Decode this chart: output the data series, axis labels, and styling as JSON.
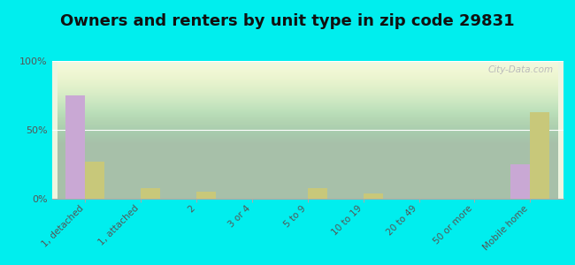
{
  "title": "Owners and renters by unit type in zip code 29831",
  "categories": [
    "1, detached",
    "1, attached",
    "2",
    "3 or 4",
    "5 to 9",
    "10 to 19",
    "20 to 49",
    "50 or more",
    "Mobile home"
  ],
  "owner_values": [
    75,
    0,
    0,
    0,
    0,
    0,
    0,
    0,
    25
  ],
  "renter_values": [
    27,
    8,
    5,
    0,
    8,
    4,
    0,
    0,
    63
  ],
  "owner_color": "#c9a8d4",
  "renter_color": "#c8c87a",
  "background_color": "#00eeee",
  "ylim": [
    0,
    100
  ],
  "yticks": [
    0,
    50,
    100
  ],
  "ytick_labels": [
    "0%",
    "50%",
    "100%"
  ],
  "bar_width": 0.35,
  "title_fontsize": 13,
  "watermark": "City-Data.com"
}
